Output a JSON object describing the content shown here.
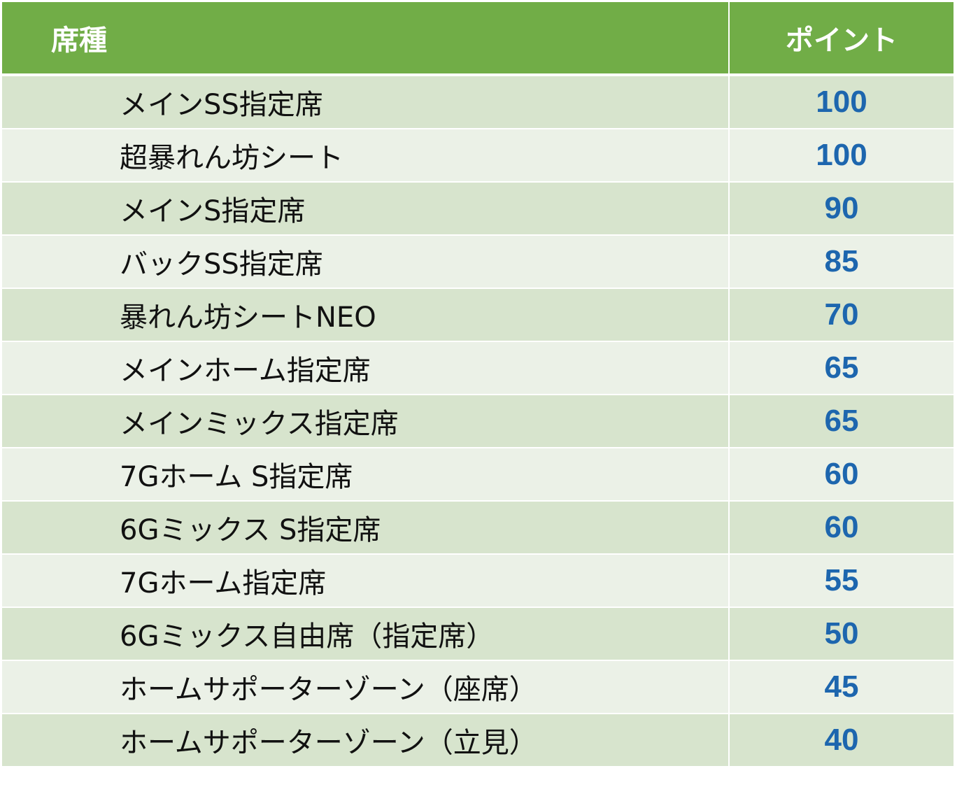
{
  "table": {
    "header": {
      "name_label": "席種",
      "points_label": "ポイント"
    },
    "rows": [
      {
        "name": "メインSS指定席",
        "points": "100"
      },
      {
        "name": "超暴れん坊シート",
        "points": "100"
      },
      {
        "name": "メインS指定席",
        "points": "90"
      },
      {
        "name": "バックSS指定席",
        "points": "85"
      },
      {
        "name": "暴れん坊シートNEO",
        "points": "70"
      },
      {
        "name": "メインホーム指定席",
        "points": "65"
      },
      {
        "name": "メインミックス指定席",
        "points": "65"
      },
      {
        "name": "7Gホーム S指定席",
        "points": "60"
      },
      {
        "name": "6Gミックス S指定席",
        "points": "60"
      },
      {
        "name": "7Gホーム指定席",
        "points": "55"
      },
      {
        "name": "6Gミックス自由席（指定席）",
        "points": "50"
      },
      {
        "name": "ホームサポーターゾーン（座席）",
        "points": "45"
      },
      {
        "name": "ホームサポーターゾーン（立見）",
        "points": "40"
      }
    ]
  },
  "colors": {
    "header_bg": "#71ad47",
    "row_odd_bg": "#d7e4cd",
    "row_even_bg": "#ebf1e7",
    "points_text": "#1d66ae"
  }
}
